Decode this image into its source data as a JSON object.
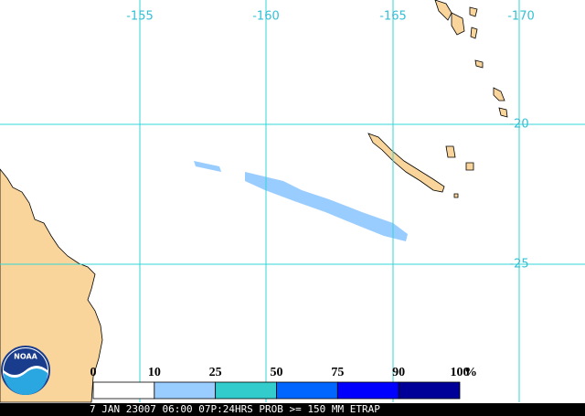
{
  "map": {
    "lon_labels": [
      "-155",
      "-160",
      "-165",
      "-170"
    ],
    "lat_labels": [
      "-20",
      "-25"
    ]
  },
  "legend": {
    "labels": [
      "0",
      "10",
      "25",
      "50",
      "75",
      "90",
      "100"
    ],
    "unit": "%",
    "colors": [
      "#ffffff",
      "#99ccff",
      "#33cccc",
      "#0066ff",
      "#0000ff",
      "#000099"
    ]
  },
  "logo": "NOAA",
  "caption": "7 JAN 23007 06:00 07P:24HRS PROB >= 150 MM ETRAP"
}
